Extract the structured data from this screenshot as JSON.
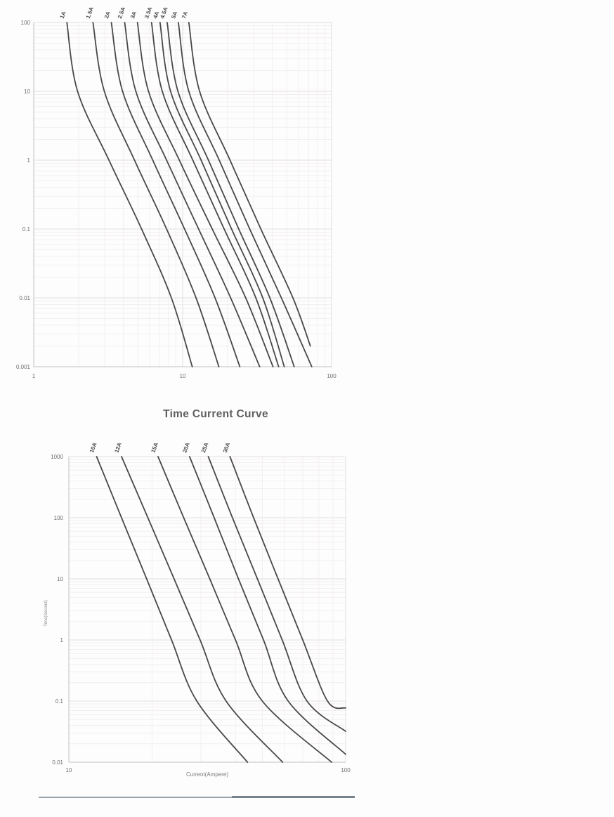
{
  "colors": {
    "curve": "#3a3a3a",
    "grid_major": "#e2dfdf",
    "grid_minor": "#f3efef",
    "axis": "#c2bfbf",
    "tick_text": "#6e6e6e",
    "curve_label_text": "#4a4a4a",
    "title_text": "#5f5f5f",
    "footer_rule": "#9aa3aa",
    "footer_rule_dark": "#76838d"
  },
  "chart_data": [
    {
      "type": "line",
      "title": "",
      "xlabel": "",
      "ylabel": "",
      "xlim": [
        1,
        100
      ],
      "ylim": [
        0.001,
        100
      ],
      "x_ticks": [
        "1",
        "10",
        "100"
      ],
      "y_ticks": [
        "100",
        "10",
        "1",
        "0.1",
        "0.01",
        "0.001"
      ],
      "grid": "log major+minor",
      "legend_position": "rotated labels above curve tops",
      "axes_scale": "log-log",
      "series": [
        {
          "name": "1A",
          "points": [
            [
              1.67,
              100
            ],
            [
              1.97,
              10
            ],
            [
              3.2,
              1
            ],
            [
              5.3,
              0.1
            ],
            [
              8.4,
              0.01
            ],
            [
              11.6,
              0.001
            ]
          ]
        },
        {
          "name": "1.5A",
          "points": [
            [
              2.5,
              100
            ],
            [
              2.98,
              10
            ],
            [
              4.75,
              1
            ],
            [
              7.8,
              0.1
            ],
            [
              12.3,
              0.01
            ],
            [
              17.5,
              0.001
            ]
          ]
        },
        {
          "name": "2A",
          "points": [
            [
              3.32,
              100
            ],
            [
              3.95,
              10
            ],
            [
              6.3,
              1
            ],
            [
              10.3,
              0.1
            ],
            [
              16.5,
              0.01
            ],
            [
              24.2,
              0.001
            ]
          ]
        },
        {
          "name": "2.5A",
          "points": [
            [
              4.08,
              100
            ],
            [
              4.85,
              10
            ],
            [
              7.8,
              1
            ],
            [
              12.8,
              0.1
            ],
            [
              21,
              0.01
            ],
            [
              32.9,
              0.001
            ]
          ]
        },
        {
          "name": "3A",
          "points": [
            [
              4.97,
              100
            ],
            [
              5.9,
              10
            ],
            [
              9.5,
              1
            ],
            [
              15.8,
              0.1
            ],
            [
              26.5,
              0.01
            ],
            [
              40.4,
              0.001
            ]
          ]
        },
        {
          "name": "3.5A",
          "points": [
            [
              6.18,
              100
            ],
            [
              7.3,
              10
            ],
            [
              11.7,
              1
            ],
            [
              19,
              0.1
            ],
            [
              31,
              0.01
            ],
            [
              44.1,
              0.001
            ]
          ]
        },
        {
          "name": "4A",
          "points": [
            [
              7.05,
              100
            ],
            [
              8.3,
              10
            ],
            [
              13.3,
              1
            ],
            [
              21.3,
              0.1
            ],
            [
              34.5,
              0.01
            ],
            [
              48.1,
              0.001
            ]
          ]
        },
        {
          "name": "4.5A",
          "points": [
            [
              7.87,
              100
            ],
            [
              9.3,
              10
            ],
            [
              14.9,
              1
            ],
            [
              23.8,
              0.1
            ],
            [
              38.5,
              0.01
            ],
            [
              56.1,
              0.001
            ]
          ]
        },
        {
          "name": "5A",
          "points": [
            [
              9.36,
              100
            ],
            [
              11,
              10
            ],
            [
              17.6,
              1
            ],
            [
              28.2,
              0.1
            ],
            [
              46,
              0.01
            ],
            [
              73.6,
              0.001
            ]
          ]
        },
        {
          "name": "7A",
          "points": [
            [
              11,
              100
            ],
            [
              13,
              10
            ],
            [
              20.8,
              1
            ],
            [
              33.5,
              0.1
            ],
            [
              55,
              0.01
            ],
            [
              72,
              0.002
            ]
          ]
        }
      ]
    },
    {
      "type": "line",
      "title": "Time Current Curve",
      "xlabel": "Current(Ampere)",
      "ylabel": "Time(Second)",
      "xlim": [
        10,
        100
      ],
      "ylim": [
        0.01,
        1000
      ],
      "x_ticks": [
        "10",
        "100"
      ],
      "y_ticks": [
        "1000",
        "100",
        "10",
        "1",
        "0.1",
        "0.01"
      ],
      "grid": "log major+minor",
      "legend_position": "rotated labels above curve tops",
      "axes_scale": "log-log",
      "series": [
        {
          "name": "10A",
          "points": [
            [
              12.6,
              1000
            ],
            [
              15.5,
              100
            ],
            [
              19.1,
              10
            ],
            [
              23.5,
              1
            ],
            [
              29,
              0.1
            ],
            [
              44.2,
              0.01
            ]
          ]
        },
        {
          "name": "12A",
          "points": [
            [
              15.5,
              1000
            ],
            [
              19.3,
              100
            ],
            [
              24,
              10
            ],
            [
              29.8,
              1
            ],
            [
              37,
              0.1
            ],
            [
              59.2,
              0.01
            ]
          ]
        },
        {
          "name": "15A",
          "points": [
            [
              21,
              1000
            ],
            [
              26,
              100
            ],
            [
              32.3,
              10
            ],
            [
              40,
              1
            ],
            [
              50,
              0.1
            ],
            [
              89,
              0.01
            ]
          ]
        },
        {
          "name": "20A",
          "points": [
            [
              27.3,
              1000
            ],
            [
              33.5,
              100
            ],
            [
              41,
              10
            ],
            [
              50.5,
              1
            ],
            [
              62,
              0.1
            ],
            [
              100,
              0.0135
            ]
          ]
        },
        {
          "name": "25A",
          "points": [
            [
              31.9,
              1000
            ],
            [
              39,
              100
            ],
            [
              48,
              10
            ],
            [
              59,
              1
            ],
            [
              72.5,
              0.1
            ],
            [
              100,
              0.032
            ]
          ]
        },
        {
          "name": "30A",
          "points": [
            [
              38.2,
              1000
            ],
            [
              46.5,
              100
            ],
            [
              57,
              10
            ],
            [
              70,
              1
            ],
            [
              86,
              0.1
            ],
            [
              100,
              0.077
            ]
          ]
        }
      ]
    }
  ]
}
